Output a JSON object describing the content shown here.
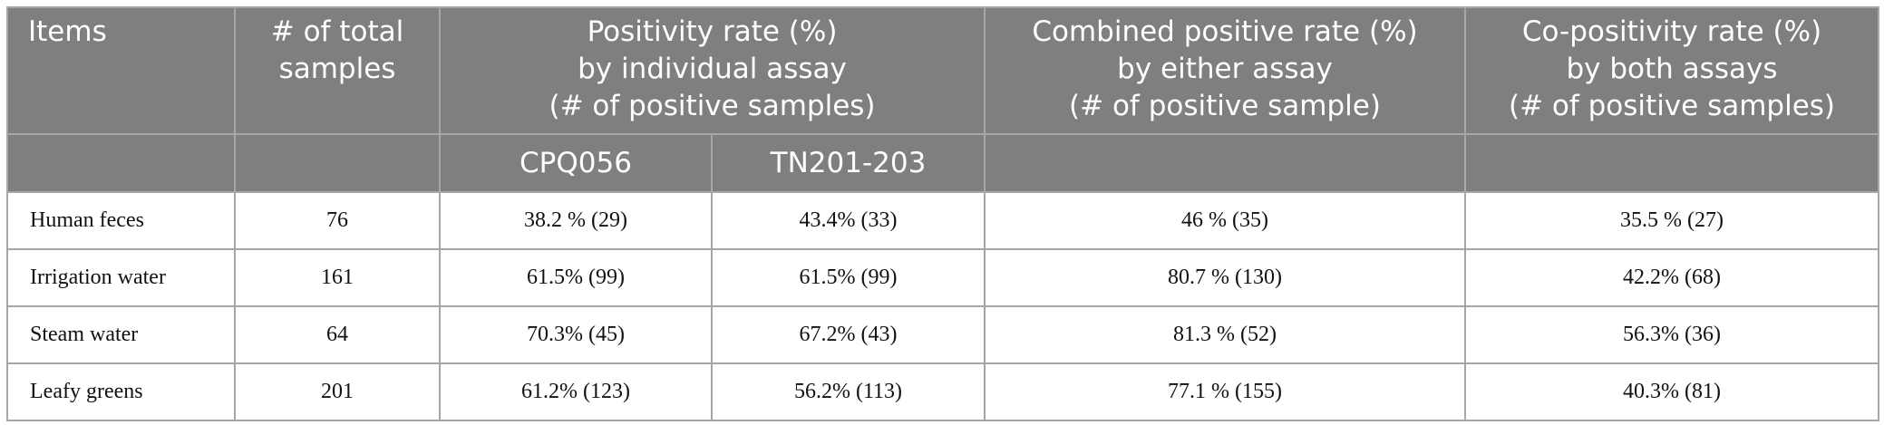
{
  "table": {
    "header": {
      "columns": [
        {
          "lines": [
            "Items"
          ]
        },
        {
          "lines": [
            "# of total",
            "samples"
          ]
        },
        {
          "lines": [
            "Positivity rate (%)",
            "by individual assay",
            "(# of positive samples)"
          ]
        },
        {
          "lines": [
            "Combined positive rate (%)",
            "by either assay",
            "(# of positive sample)"
          ]
        },
        {
          "lines": [
            "Co-positivity rate (%)",
            "by both assays",
            "(# of positive samples)"
          ]
        }
      ],
      "subcolumns": [
        "CPQ056",
        "TN201-203"
      ]
    },
    "rows": [
      [
        "Human feces",
        "76",
        "38.2 % (29)",
        "43.4% (33)",
        "46 % (35)",
        "35.5 % (27)"
      ],
      [
        "Irrigation water",
        "161",
        "61.5% (99)",
        "61.5% (99)",
        "80.7 % (130)",
        "42.2% (68)"
      ],
      [
        "Steam water",
        "64",
        "70.3% (45)",
        "67.2% (43)",
        "81.3 % (52)",
        "56.3% (36)"
      ],
      [
        "Leafy greens",
        "201",
        "61.2% (123)",
        "56.2% (113)",
        "77.1 % (155)",
        "40.3% (81)"
      ]
    ]
  }
}
